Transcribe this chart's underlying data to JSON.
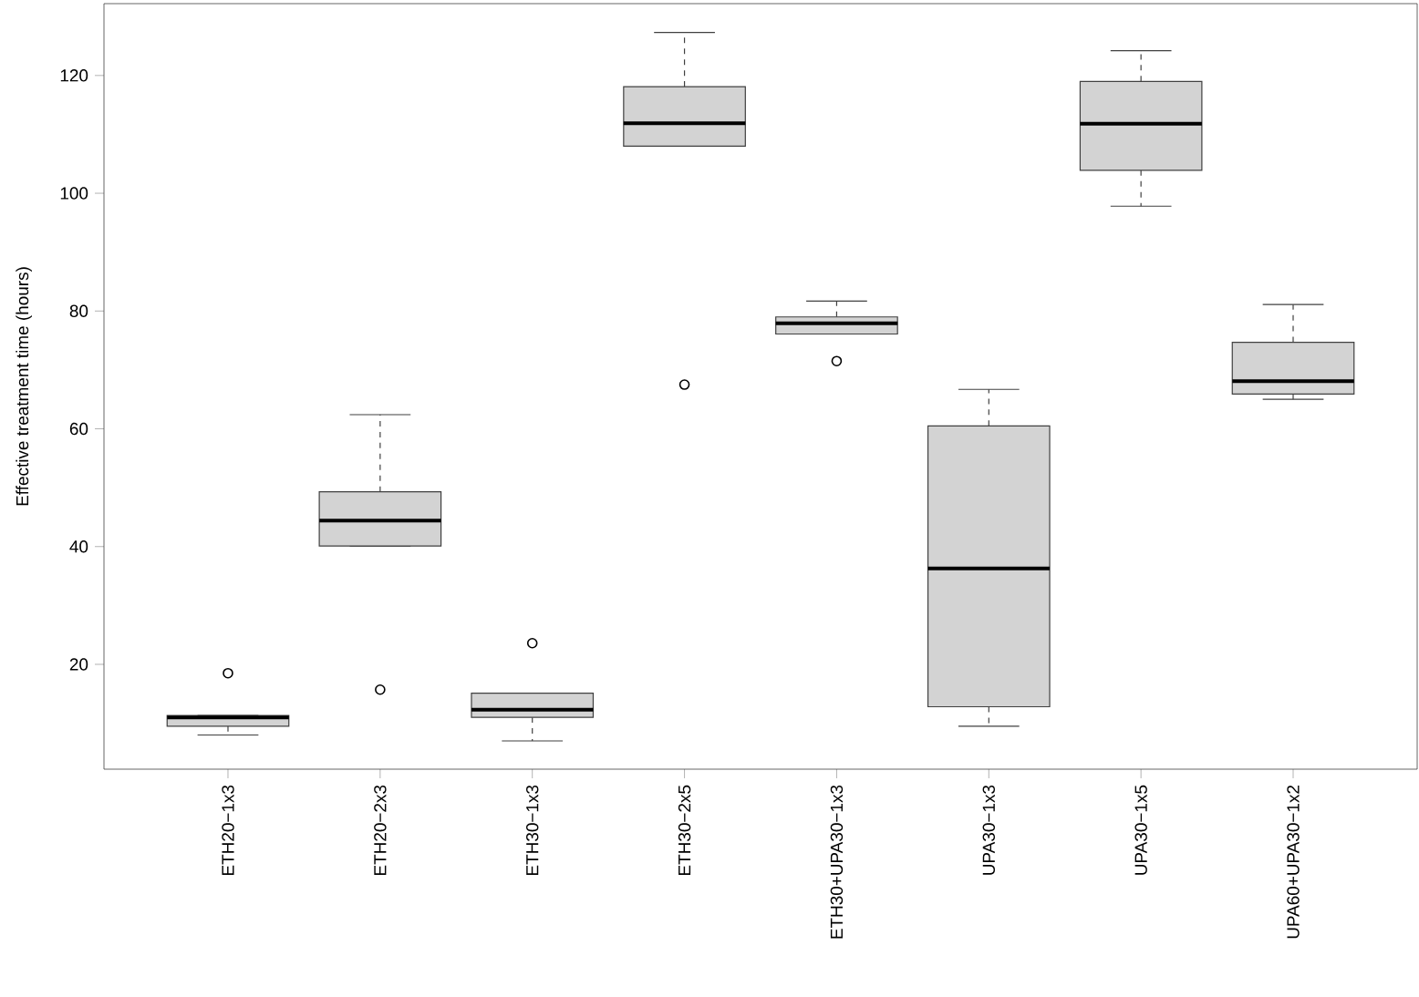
{
  "chart_data": {
    "type": "box",
    "ylabel": "Effective treatment time (hours)",
    "categories": [
      "ETH20−1x3",
      "ETH20−2x3",
      "ETH30−1x3",
      "ETH30−2x5",
      "ETH30+UPA30−1x3",
      "UPA30−1x3",
      "UPA30−1x5",
      "UPA60+UPA30−1x2"
    ],
    "color": "#d3d3d3",
    "boxes": [
      {
        "low": 8.0,
        "q1": 9.5,
        "median": 11.0,
        "q3": 11.3,
        "high": 11.3,
        "outliers": [
          18.5
        ]
      },
      {
        "low": 40.1,
        "q1": 40.1,
        "median": 44.4,
        "q3": 49.3,
        "high": 62.4,
        "outliers": [
          15.7
        ]
      },
      {
        "low": 7.0,
        "q1": 11.0,
        "median": 12.3,
        "q3": 15.1,
        "high": 15.1,
        "outliers": [
          23.6
        ]
      },
      {
        "low": 108.0,
        "q1": 108.0,
        "median": 111.9,
        "q3": 118.1,
        "high": 127.3,
        "outliers": [
          67.5
        ]
      },
      {
        "low": 76.1,
        "q1": 76.1,
        "median": 77.9,
        "q3": 79.0,
        "high": 81.7,
        "outliers": [
          71.5
        ]
      },
      {
        "low": 9.5,
        "q1": 12.8,
        "median": 36.3,
        "q3": 60.5,
        "high": 66.7
      },
      {
        "low": 97.8,
        "q1": 103.9,
        "median": 111.8,
        "q3": 119.0,
        "high": 124.2
      },
      {
        "low": 65.0,
        "q1": 65.9,
        "median": 68.1,
        "q3": 74.7,
        "high": 81.1
      }
    ],
    "ylim": [
      2.2,
      132.2
    ],
    "yticks": [
      20,
      40,
      60,
      80,
      100,
      120
    ]
  }
}
